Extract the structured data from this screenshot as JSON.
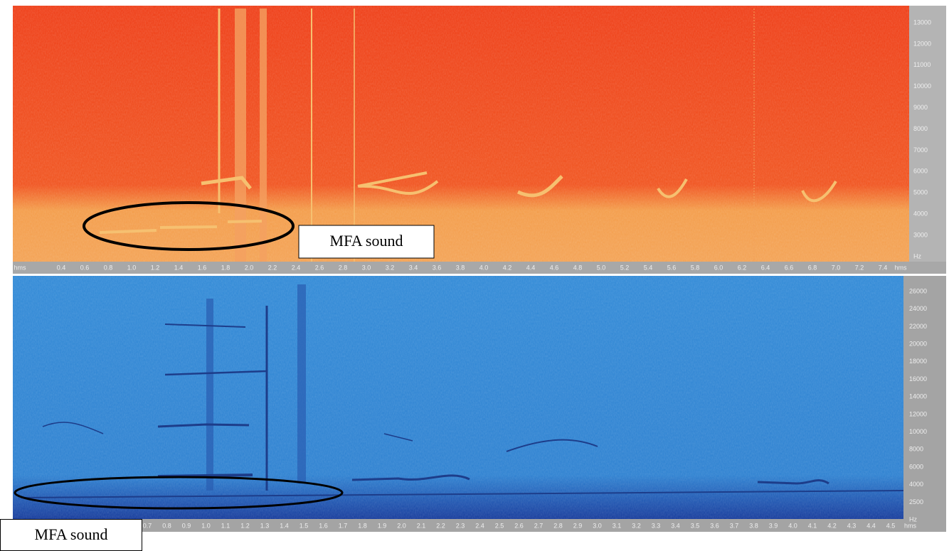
{
  "top_panel": {
    "y_labels": [
      "13000",
      "12000",
      "11000",
      "10000",
      "9000",
      "8000",
      "7000",
      "6000",
      "5000",
      "4000",
      "3000",
      "Hz"
    ],
    "x_labels": [
      "hms",
      "0.4",
      "0.6",
      "0.8",
      "1.0",
      "1.2",
      "1.4",
      "1.6",
      "1.8",
      "2.0",
      "2.2",
      "2.4",
      "2.6",
      "2.8",
      "3.0",
      "3.2",
      "3.4",
      "3.6",
      "3.8",
      "4.0",
      "4.2",
      "4.4",
      "4.6",
      "4.8",
      "5.0",
      "5.2",
      "5.4",
      "5.6",
      "5.8",
      "6.0",
      "6.2",
      "6.4",
      "6.6",
      "6.8",
      "7.0",
      "7.2",
      "7.4",
      "hms"
    ],
    "annotation": "MFA sound"
  },
  "bottom_panel": {
    "y_labels": [
      "26000",
      "24000",
      "22000",
      "20000",
      "18000",
      "16000",
      "14000",
      "12000",
      "10000",
      "8000",
      "6000",
      "4000",
      "2500",
      "Hz"
    ],
    "x_labels": [
      "0.7",
      "0.8",
      "0.9",
      "1.0",
      "1.1",
      "1.2",
      "1.3",
      "1.4",
      "1.5",
      "1.6",
      "1.7",
      "1.8",
      "1.9",
      "2.0",
      "2.1",
      "2.2",
      "2.3",
      "2.4",
      "2.5",
      "2.6",
      "2.7",
      "2.8",
      "2.9",
      "3.0",
      "3.1",
      "3.2",
      "3.3",
      "3.4",
      "3.5",
      "3.6",
      "3.7",
      "3.8",
      "3.9",
      "4.0",
      "4.1",
      "4.2",
      "4.3",
      "4.4",
      "4.5",
      "hms"
    ],
    "annotation": "MFA sound"
  }
}
